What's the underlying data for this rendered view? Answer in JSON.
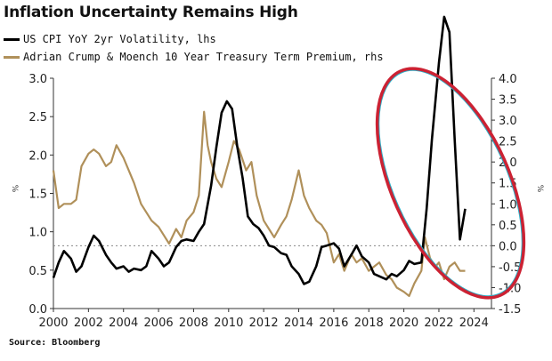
{
  "header": {
    "title": "Inflation Uncertainty Remains High"
  },
  "source_label": "Source: Bloomberg",
  "colors": {
    "cpi_series": "#000000",
    "term_premium_series": "#b0905a",
    "annotation_circle": "#cc2233",
    "annotation_circle_inner": "#2ab0c8",
    "reference_line": "#888888"
  },
  "chart_data": {
    "type": "line",
    "title": "Inflation Uncertainty Remains High",
    "x_ticks": [
      "2000",
      "2002",
      "2004",
      "2006",
      "2008",
      "2010",
      "2012",
      "2014",
      "2016",
      "2018",
      "2020",
      "2022",
      "2024"
    ],
    "xlim": [
      2000,
      2025
    ],
    "left_axis": {
      "unit": "%",
      "ticks": [
        "0.0",
        "0.5",
        "1.0",
        "1.5",
        "2.0",
        "2.5",
        "3.0"
      ],
      "ylim": [
        0,
        3.0
      ]
    },
    "right_axis": {
      "unit": "%",
      "ticks": [
        "-1.5",
        "-1.0",
        "-0.5",
        "0.0",
        "0.5",
        "1.0",
        "1.5",
        "2.0",
        "2.5",
        "3.0",
        "3.5",
        "4.0"
      ],
      "ylim": [
        -1.5,
        4.0
      ]
    },
    "reference_line": {
      "axis": "right",
      "value": 0.0,
      "style": "dotted"
    },
    "grid": false,
    "legend_placement": "top-left",
    "series": [
      {
        "name": "US CPI YoY 2yr Volatility, lhs",
        "axis": "left",
        "color": "#000000",
        "x": [
          2000.0,
          2000.3,
          2000.6,
          2001.0,
          2001.3,
          2001.6,
          2002.0,
          2002.3,
          2002.6,
          2003.0,
          2003.3,
          2003.6,
          2004.0,
          2004.3,
          2004.6,
          2005.0,
          2005.3,
          2005.6,
          2006.0,
          2006.3,
          2006.6,
          2007.0,
          2007.3,
          2007.6,
          2008.0,
          2008.3,
          2008.6,
          2009.0,
          2009.3,
          2009.6,
          2009.9,
          2010.2,
          2010.5,
          2010.8,
          2011.1,
          2011.4,
          2011.7,
          2012.0,
          2012.3,
          2012.6,
          2013.0,
          2013.3,
          2013.6,
          2014.0,
          2014.3,
          2014.6,
          2015.0,
          2015.3,
          2015.6,
          2016.0,
          2016.3,
          2016.6,
          2017.0,
          2017.3,
          2017.6,
          2018.0,
          2018.3,
          2018.6,
          2019.0,
          2019.3,
          2019.6,
          2020.0,
          2020.3,
          2020.6,
          2021.0,
          2021.3,
          2021.6,
          2022.0,
          2022.3,
          2022.6,
          2022.9,
          2023.2,
          2023.5
        ],
        "values": [
          0.4,
          0.6,
          0.75,
          0.65,
          0.48,
          0.55,
          0.8,
          0.95,
          0.88,
          0.7,
          0.6,
          0.52,
          0.55,
          0.48,
          0.52,
          0.5,
          0.55,
          0.75,
          0.65,
          0.55,
          0.6,
          0.8,
          0.88,
          0.9,
          0.88,
          1.0,
          1.1,
          1.6,
          2.1,
          2.55,
          2.7,
          2.6,
          2.1,
          1.7,
          1.2,
          1.1,
          1.05,
          0.95,
          0.82,
          0.8,
          0.72,
          0.7,
          0.55,
          0.45,
          0.32,
          0.35,
          0.55,
          0.8,
          0.82,
          0.85,
          0.78,
          0.55,
          0.7,
          0.82,
          0.68,
          0.6,
          0.45,
          0.42,
          0.38,
          0.45,
          0.42,
          0.5,
          0.62,
          0.58,
          0.6,
          1.3,
          2.2,
          3.2,
          3.8,
          3.6,
          2.2,
          0.9,
          1.3
        ]
      },
      {
        "name": "Adrian Crump & Moench 10 Year Treasury Term Premium, rhs",
        "axis": "right",
        "color": "#b0905a",
        "x": [
          2000.0,
          2000.3,
          2000.6,
          2001.0,
          2001.3,
          2001.6,
          2002.0,
          2002.3,
          2002.6,
          2003.0,
          2003.3,
          2003.6,
          2004.0,
          2004.3,
          2004.6,
          2005.0,
          2005.3,
          2005.6,
          2006.0,
          2006.3,
          2006.6,
          2007.0,
          2007.3,
          2007.6,
          2008.0,
          2008.3,
          2008.6,
          2008.8,
          2009.0,
          2009.3,
          2009.6,
          2010.0,
          2010.3,
          2010.6,
          2011.0,
          2011.3,
          2011.6,
          2012.0,
          2012.3,
          2012.6,
          2013.0,
          2013.3,
          2013.6,
          2014.0,
          2014.3,
          2014.6,
          2015.0,
          2015.3,
          2015.6,
          2016.0,
          2016.3,
          2016.6,
          2017.0,
          2017.3,
          2017.6,
          2018.0,
          2018.3,
          2018.6,
          2019.0,
          2019.3,
          2019.6,
          2020.0,
          2020.3,
          2020.6,
          2021.0,
          2021.2,
          2021.5,
          2021.8,
          2022.0,
          2022.3,
          2022.6,
          2022.9,
          2023.2,
          2023.5
        ],
        "values": [
          1.8,
          0.9,
          1.0,
          1.0,
          1.1,
          1.9,
          2.2,
          2.3,
          2.2,
          1.9,
          2.0,
          2.4,
          2.1,
          1.8,
          1.5,
          1.0,
          0.8,
          0.6,
          0.45,
          0.25,
          0.05,
          0.4,
          0.2,
          0.6,
          0.8,
          1.2,
          3.2,
          2.4,
          2.0,
          1.6,
          1.4,
          2.0,
          2.5,
          2.3,
          1.8,
          2.0,
          1.2,
          0.6,
          0.4,
          0.2,
          0.5,
          0.7,
          1.1,
          1.8,
          1.2,
          0.9,
          0.6,
          0.5,
          0.3,
          -0.4,
          -0.2,
          -0.6,
          -0.2,
          -0.4,
          -0.3,
          -0.6,
          -0.5,
          -0.4,
          -0.7,
          -0.8,
          -1.0,
          -1.1,
          -1.2,
          -0.9,
          -0.6,
          0.2,
          -0.3,
          -0.5,
          -0.4,
          -0.8,
          -0.5,
          -0.4,
          -0.6,
          -0.6
        ]
      }
    ]
  }
}
